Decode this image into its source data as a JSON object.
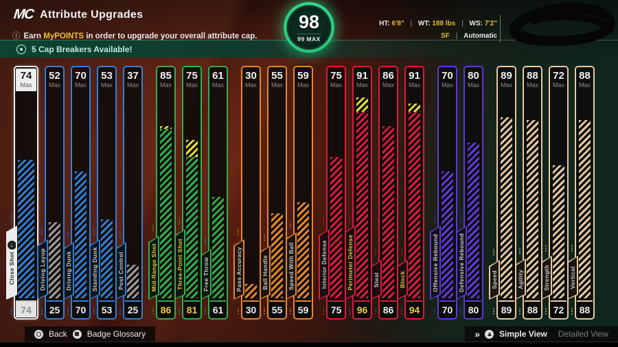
{
  "header": {
    "logo": "MC",
    "title": "Attribute Upgrades",
    "info_icon": "ⓘ",
    "info_prefix": "Earn ",
    "info_highlight": "MyPOINTS",
    "info_suffix": " in order to upgrade your overall attribute cap.",
    "cap_banner": "5 Cap Breakers Available!"
  },
  "overall": {
    "value": "98",
    "cap": "99 MAX"
  },
  "player_info": {
    "ht_label": "HT:",
    "ht": "6'8\"",
    "wt_label": "WT:",
    "wt": "188 lbs",
    "ws_label": "WS:",
    "ws": "7'2\"",
    "position": "SF",
    "mode": "Automatic",
    "separator": "|"
  },
  "footer": {
    "chevrons": "»",
    "back": "Back",
    "badge_glossary": "Badge Glossary",
    "simple_view": "Simple View",
    "detailed_view": "Detailed View"
  },
  "max_label": "Max",
  "colors": {
    "boost_stripe": "#e4e03a",
    "boost_text": "#ecc93e",
    "range_stripe": "#9c9c9c",
    "selected_frame": "#ededed"
  },
  "attribute_groups": [
    {
      "key": "finishing",
      "color": "#2f80d9",
      "bars": [
        {
          "label": "Close Shot",
          "max": 74,
          "value": 74,
          "selected": true
        },
        {
          "label": "Driving Layup",
          "max": 52,
          "value": 25
        },
        {
          "label": "Driving Dunk",
          "max": 70,
          "value": 70
        },
        {
          "label": "Standing Dunk",
          "max": 53,
          "value": 53
        },
        {
          "label": "Post Control",
          "max": 37,
          "value": 25
        }
      ]
    },
    {
      "key": "shooting",
      "color": "#30ae4b",
      "bars": [
        {
          "label": "Mid-Range Shot",
          "max": 85,
          "value": 86
        },
        {
          "label": "Three-Point Shot",
          "max": 75,
          "value": 81
        },
        {
          "label": "Free Throw",
          "max": 61,
          "value": 61
        }
      ]
    },
    {
      "key": "playmaking",
      "color": "#e8862b",
      "bars": [
        {
          "label": "Pass Accuracy",
          "max": 30,
          "value": 30
        },
        {
          "label": "Ball Handle",
          "max": 55,
          "value": 55
        },
        {
          "label": "Speed With Ball",
          "max": 59,
          "value": 59
        }
      ]
    },
    {
      "key": "defense",
      "color": "#e01a3c",
      "bars": [
        {
          "label": "Interior Defense",
          "max": 75,
          "value": 75
        },
        {
          "label": "Perimeter Defense",
          "max": 91,
          "value": 96
        },
        {
          "label": "Steal",
          "max": 86,
          "value": 86
        },
        {
          "label": "Block",
          "max": 91,
          "value": 94
        }
      ]
    },
    {
      "key": "rebounding",
      "color": "#6038dc",
      "bars": [
        {
          "label": "Offensive Rebound",
          "max": 70,
          "value": 70
        },
        {
          "label": "Defensive Rebound",
          "max": 80,
          "value": 80
        }
      ]
    },
    {
      "key": "physicals",
      "color": "#e9c9a0",
      "bars": [
        {
          "label": "Speed",
          "max": 89,
          "value": 89
        },
        {
          "label": "Agility",
          "max": 88,
          "value": 88
        },
        {
          "label": "Strength",
          "max": 72,
          "value": 72
        },
        {
          "label": "Vertical",
          "max": 88,
          "value": 88
        }
      ]
    }
  ]
}
